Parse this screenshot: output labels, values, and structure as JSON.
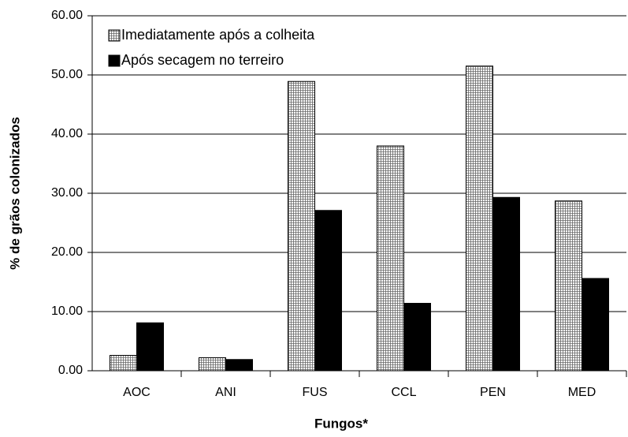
{
  "chart_data": {
    "type": "bar",
    "x_label": "Fungos*",
    "y_label": "% de grãos colonizados",
    "categories": [
      "AOC",
      "ANI",
      "FUS",
      "CCL",
      "PEN",
      "MED"
    ],
    "series": [
      {
        "name": "Imediatamente após a colheita",
        "color": "#ffffff",
        "hatch": "grid",
        "values": [
          2.6,
          2.2,
          48.9,
          38.0,
          51.5,
          28.7
        ]
      },
      {
        "name": "Após secagem no terreiro",
        "color": "#000000",
        "values": [
          8.1,
          1.9,
          27.1,
          11.4,
          29.3,
          15.6
        ]
      }
    ],
    "ylim": [
      0,
      60
    ],
    "yticks": [
      {
        "value": 0,
        "label": "0.00"
      },
      {
        "value": 10,
        "label": "10.00"
      },
      {
        "value": 20,
        "label": "20.00"
      },
      {
        "value": 30,
        "label": "30.00"
      },
      {
        "value": 40,
        "label": "40.00"
      },
      {
        "value": 50,
        "label": "50.00"
      },
      {
        "value": 60,
        "label": "60.00"
      }
    ],
    "grid": true,
    "legend": "upper left"
  }
}
